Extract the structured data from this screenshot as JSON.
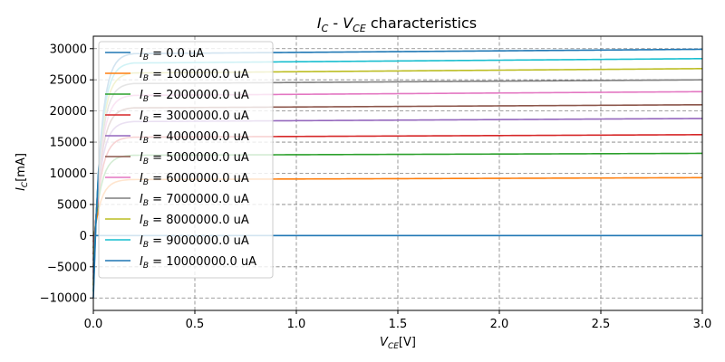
{
  "chart_data": {
    "type": "line",
    "title": "$I_C$ - $V_{CE}$ characteristics",
    "title_parts": {
      "main": "I",
      "main_sub": "C",
      "sep": " - ",
      "second": "V",
      "second_sub": "CE",
      "rest": " characteristics"
    },
    "xlabel": "$V_{CE}[V]$",
    "xlabel_parts": {
      "main": "V",
      "sub": "CE",
      "rest": "[V]"
    },
    "ylabel": "$I_C[mA]$",
    "ylabel_parts": {
      "main": "I",
      "sub": "C",
      "rest": "[mA]"
    },
    "xlim": [
      0,
      3
    ],
    "ylim": [
      -12000,
      32000
    ],
    "xticks": [
      0.0,
      0.5,
      1.0,
      1.5,
      2.0,
      2.5,
      3.0
    ],
    "xtick_labels": [
      "0.0",
      "0.5",
      "1.0",
      "1.5",
      "2.0",
      "2.5",
      "3.0"
    ],
    "yticks": [
      -10000,
      -5000,
      0,
      5000,
      10000,
      15000,
      20000,
      25000,
      30000
    ],
    "ytick_labels": [
      "−10000",
      "−5000",
      "0",
      "5000",
      "10000",
      "15000",
      "20000",
      "25000",
      "30000"
    ],
    "grid": true,
    "grid_style": "dashed",
    "legend_position": "top-left",
    "legend_prefix": "I",
    "legend_prefix_sub": "B",
    "series": [
      {
        "name": "$I_B$ = 0.0 uA",
        "label_value": " = 0.0 uA",
        "color": "#1f77b4",
        "y_at_0": 0,
        "y_at_0_2": 0,
        "y_at_3": 0
      },
      {
        "name": "$I_B$ = 1000000.0 uA",
        "label_value": " = 1000000.0 uA",
        "color": "#ff7f0e",
        "y_at_0": -1000,
        "y_at_0_2": 9000,
        "y_at_3": 9300
      },
      {
        "name": "$I_B$ = 2000000.0 uA",
        "label_value": " = 2000000.0 uA",
        "color": "#2ca02c",
        "y_at_0": -2000,
        "y_at_0_2": 12900,
        "y_at_3": 13200
      },
      {
        "name": "$I_B$ = 3000000.0 uA",
        "label_value": " = 3000000.0 uA",
        "color": "#d62728",
        "y_at_0": -3000,
        "y_at_0_2": 15800,
        "y_at_3": 16200
      },
      {
        "name": "$I_B$ = 4000000.0 uA",
        "label_value": " = 4000000.0 uA",
        "color": "#9467bd",
        "y_at_0": -4000,
        "y_at_0_2": 18300,
        "y_at_3": 18800
      },
      {
        "name": "$I_B$ = 5000000.0 uA",
        "label_value": " = 5000000.0 uA",
        "color": "#8c564b",
        "y_at_0": -5000,
        "y_at_0_2": 20500,
        "y_at_3": 21000
      },
      {
        "name": "$I_B$ = 6000000.0 uA",
        "label_value": " = 6000000.0 uA",
        "color": "#e377c2",
        "y_at_0": -6000,
        "y_at_0_2": 22500,
        "y_at_3": 23100
      },
      {
        "name": "$I_B$ = 7000000.0 uA",
        "label_value": " = 7000000.0 uA",
        "color": "#7f7f7f",
        "y_at_0": -7000,
        "y_at_0_2": 24400,
        "y_at_3": 25000
      },
      {
        "name": "$I_B$ = 8000000.0 uA",
        "label_value": " = 8000000.0 uA",
        "color": "#bcbd22",
        "y_at_0": -8000,
        "y_at_0_2": 26100,
        "y_at_3": 26800
      },
      {
        "name": "$I_B$ = 9000000.0 uA",
        "label_value": " = 9000000.0 uA",
        "color": "#17becf",
        "y_at_0": -9000,
        "y_at_0_2": 27700,
        "y_at_3": 28400
      },
      {
        "name": "$I_B$ = 10000000.0 uA",
        "label_value": " = 10000000.0 uA",
        "color": "#1f77b4",
        "y_at_0": -10000,
        "y_at_0_2": 29200,
        "y_at_3": 29900
      }
    ]
  }
}
